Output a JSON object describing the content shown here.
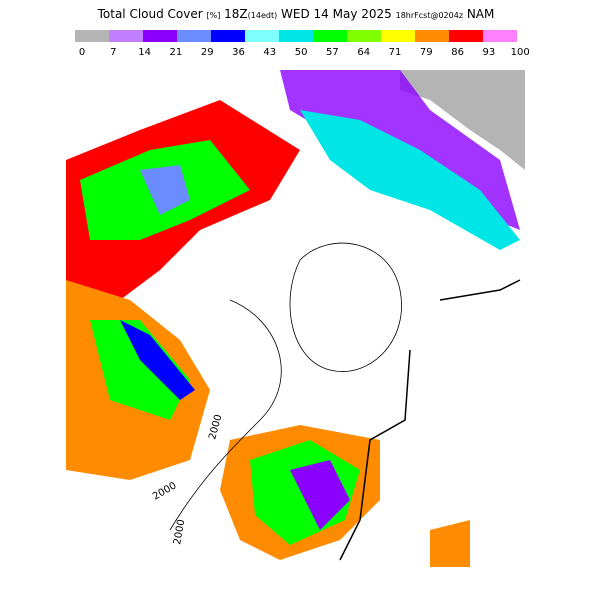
{
  "header": {
    "title_parts": [
      "Total Cloud Cover ",
      "[%]",
      " 18Z",
      "(14edt)",
      " WED 14 May 2025 ",
      "18hrFcst@0204z",
      " NAM"
    ]
  },
  "legend": {
    "labels": [
      "0",
      "7",
      "14",
      "21",
      "29",
      "36",
      "43",
      "50",
      "57",
      "64",
      "71",
      "79",
      "86",
      "93",
      "100"
    ],
    "colors": [
      "#b4b4b4",
      "#c080ff",
      "#8c00ff",
      "#6a8cff",
      "#0000ff",
      "#80ffff",
      "#00e6e6",
      "#00ff00",
      "#80ff00",
      "#ffff00",
      "#ff8c00",
      "#ff0000",
      "#ff80ff"
    ]
  },
  "map": {
    "contour_labels": [
      "2000",
      "2000",
      "2000"
    ]
  }
}
